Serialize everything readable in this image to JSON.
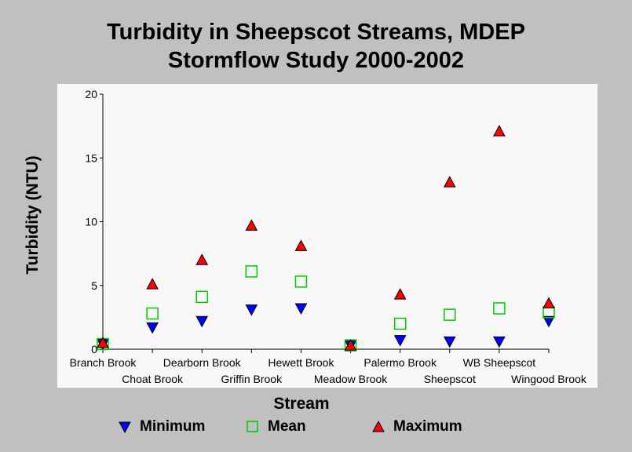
{
  "colors": {
    "background": "#c0c0c0",
    "plot_bg": "#f8f8f8",
    "minimum": "#0000ff",
    "mean": "#00c800",
    "maximum": "#ff0000"
  },
  "chart_data": {
    "type": "scatter",
    "title": "Turbidity in Sheepscot Streams, MDEP",
    "subtitle": "Stormflow Study 2000-2002",
    "xlabel": "Stream",
    "ylabel": "Turbidity (NTU)",
    "ylim": [
      0,
      20
    ],
    "yticks": [
      "0",
      "5",
      "10",
      "15",
      "20"
    ],
    "categories": [
      "Branch Brook",
      "Choat Brook",
      "Dearborn Brook",
      "Griffin Brook",
      "Hewett Brook",
      "Meadow Brook",
      "Palermo Brook",
      "Sheepscot",
      "WB Sheepscot",
      "Wingood Brook"
    ],
    "series": [
      {
        "name": "Minimum",
        "marker": "triangle-down",
        "values": [
          0.4,
          1.7,
          2.2,
          3.1,
          3.2,
          0.3,
          0.7,
          0.6,
          0.6,
          2.2
        ]
      },
      {
        "name": "Mean",
        "marker": "square-open",
        "values": [
          0.4,
          2.8,
          4.1,
          6.1,
          5.3,
          0.3,
          2.0,
          2.7,
          3.2,
          2.9
        ]
      },
      {
        "name": "Maximum",
        "marker": "triangle-up",
        "values": [
          0.5,
          5.1,
          7.0,
          9.7,
          8.1,
          0.3,
          4.3,
          13.1,
          17.1,
          3.6
        ]
      }
    ],
    "legend": "bottom",
    "grid": false
  },
  "legend_labels": {
    "minimum": "Minimum",
    "mean": "Mean",
    "maximum": "Maximum"
  }
}
